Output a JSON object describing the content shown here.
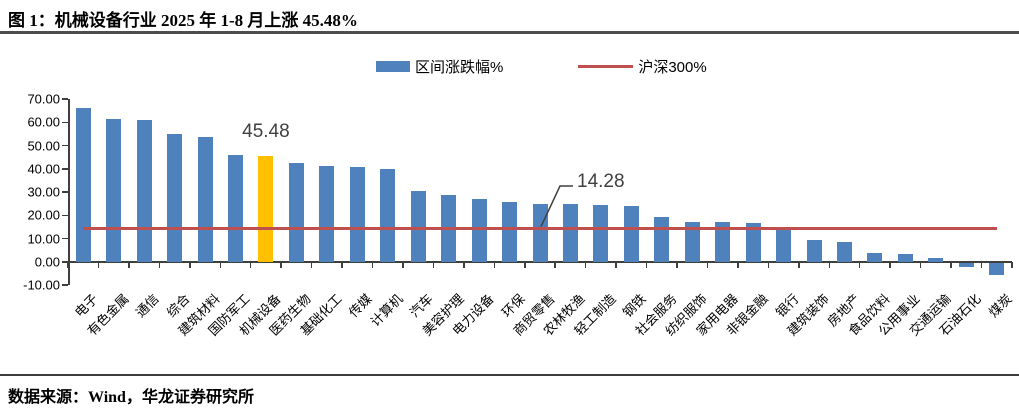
{
  "header": {
    "title": "图 1：机械设备行业 2025 年 1-8 月上涨 45.48%"
  },
  "legend": {
    "items": [
      {
        "label": "区间涨跌幅%",
        "type": "bar",
        "color": "#4F81BD"
      },
      {
        "label": "沪深300%",
        "type": "line",
        "color": "#C0504D"
      }
    ]
  },
  "chart_data": {
    "type": "bar",
    "title": "机械设备行业 2025 年 1-8 月上涨 45.48%",
    "series_name": "区间涨跌幅%",
    "categories": [
      "电子",
      "有色金属",
      "通信",
      "综合",
      "建筑材料",
      "国防军工",
      "机械设备",
      "医药生物",
      "基础化工",
      "传媒",
      "计算机",
      "汽车",
      "美容护理",
      "电力设备",
      "环保",
      "商贸零售",
      "农林牧渔",
      "轻工制造",
      "钢铁",
      "社会服务",
      "纺织服饰",
      "家用电器",
      "非银金融",
      "银行",
      "建筑装饰",
      "房地产",
      "食品饮料",
      "公用事业",
      "交通运输",
      "石油石化",
      "煤炭"
    ],
    "values": [
      66.1,
      61.3,
      61.0,
      55.0,
      53.5,
      46.0,
      45.48,
      42.6,
      41.3,
      40.9,
      40.0,
      30.6,
      28.6,
      27.1,
      25.7,
      25.0,
      24.7,
      24.4,
      24.0,
      19.4,
      17.2,
      17.0,
      16.8,
      14.4,
      9.4,
      8.7,
      3.9,
      3.5,
      1.5,
      -1.8,
      -5.5
    ],
    "bar_color": "#4F81BD",
    "highlight": {
      "category": "机械设备",
      "index": 6,
      "color": "#FFC000",
      "label": "45.48"
    },
    "benchmark_line": {
      "series_name": "沪深300%",
      "value": 14.28,
      "label": "14.28",
      "color": "#C0504D"
    },
    "ylim": [
      -10,
      70
    ],
    "ytick_step": 10,
    "ytick_labels": [
      "70.00",
      "60.00",
      "50.00",
      "40.00",
      "30.00",
      "20.00",
      "10.00",
      "0.00",
      "-10.00"
    ],
    "grid": false,
    "legend_position": "top"
  },
  "footer": {
    "source": "数据来源：Wind，华龙证券研究所"
  }
}
